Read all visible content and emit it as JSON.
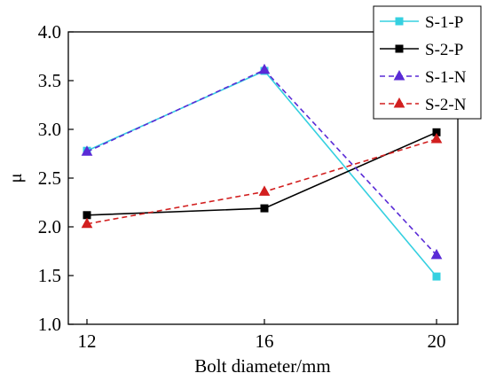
{
  "chart_data": {
    "type": "line",
    "title": "",
    "xlabel": "Bolt diameter/mm",
    "ylabel": "μ",
    "x": [
      12,
      16,
      20
    ],
    "xticks": [
      "12",
      "16",
      "20"
    ],
    "ylim": [
      1.0,
      4.0
    ],
    "yticks": [
      "1.0",
      "1.5",
      "2.0",
      "2.5",
      "3.0",
      "3.5",
      "4.0"
    ],
    "grid": false,
    "legend_position": "top-right",
    "series": [
      {
        "name": "S-1-P",
        "values": [
          2.78,
          3.6,
          1.49
        ],
        "color": "#35d0e0",
        "marker": "square",
        "dashed": false
      },
      {
        "name": "S-2-P",
        "values": [
          2.12,
          2.19,
          2.97
        ],
        "color": "#000000",
        "marker": "square",
        "dashed": false
      },
      {
        "name": "S-1-N",
        "values": [
          2.77,
          3.61,
          1.71
        ],
        "color": "#5a2bd6",
        "marker": "triangle",
        "dashed": true
      },
      {
        "name": "S-2-N",
        "values": [
          2.03,
          2.36,
          2.9
        ],
        "color": "#d21f1f",
        "marker": "triangle",
        "dashed": true
      }
    ]
  }
}
